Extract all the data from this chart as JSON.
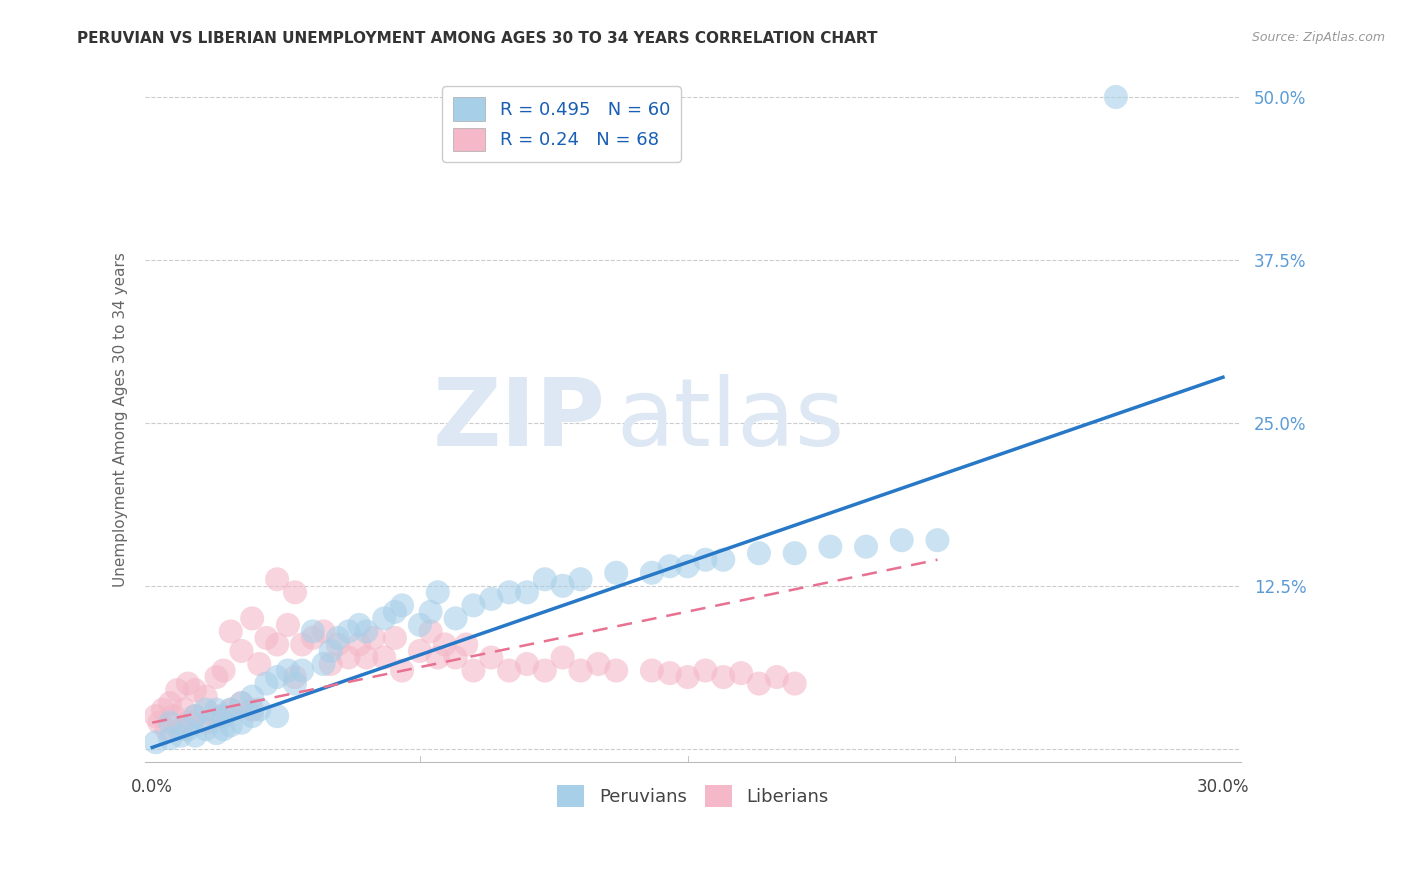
{
  "title": "PERUVIAN VS LIBERIAN UNEMPLOYMENT AMONG AGES 30 TO 34 YEARS CORRELATION CHART",
  "source": "Source: ZipAtlas.com",
  "ylabel": "Unemployment Among Ages 30 to 34 years",
  "yticks": [
    0.0,
    0.125,
    0.25,
    0.375,
    0.5
  ],
  "ytick_labels": [
    "",
    "12.5%",
    "25.0%",
    "37.5%",
    "50.0%"
  ],
  "xlim": [
    -0.002,
    0.305
  ],
  "ylim": [
    -0.01,
    0.515
  ],
  "peruvian_color": "#a8cfe8",
  "liberian_color": "#f4b8c8",
  "peruvian_line_color": "#2878c8",
  "liberian_line_color": "#e87090",
  "R_peruvian": 0.495,
  "N_peruvian": 60,
  "R_liberian": 0.24,
  "N_liberian": 68,
  "legend_label_peruvian": "Peruvians",
  "legend_label_liberian": "Liberians",
  "watermark_zip": "ZIP",
  "watermark_atlas": "atlas",
  "background_color": "#ffffff",
  "peruvian_scatter": {
    "x": [
      0.001,
      0.005,
      0.005,
      0.008,
      0.01,
      0.012,
      0.012,
      0.015,
      0.015,
      0.018,
      0.018,
      0.02,
      0.02,
      0.022,
      0.022,
      0.025,
      0.025,
      0.028,
      0.028,
      0.03,
      0.032,
      0.035,
      0.035,
      0.038,
      0.04,
      0.042,
      0.045,
      0.048,
      0.05,
      0.052,
      0.055,
      0.058,
      0.06,
      0.065,
      0.068,
      0.07,
      0.075,
      0.078,
      0.08,
      0.085,
      0.09,
      0.095,
      0.1,
      0.105,
      0.11,
      0.115,
      0.12,
      0.13,
      0.14,
      0.145,
      0.15,
      0.155,
      0.16,
      0.17,
      0.18,
      0.19,
      0.2,
      0.21,
      0.22,
      0.27
    ],
    "y": [
      0.005,
      0.008,
      0.02,
      0.01,
      0.015,
      0.01,
      0.025,
      0.015,
      0.03,
      0.012,
      0.03,
      0.015,
      0.025,
      0.018,
      0.03,
      0.02,
      0.035,
      0.025,
      0.04,
      0.03,
      0.05,
      0.025,
      0.055,
      0.06,
      0.05,
      0.06,
      0.09,
      0.065,
      0.075,
      0.085,
      0.09,
      0.095,
      0.09,
      0.1,
      0.105,
      0.11,
      0.095,
      0.105,
      0.12,
      0.1,
      0.11,
      0.115,
      0.12,
      0.12,
      0.13,
      0.125,
      0.13,
      0.135,
      0.135,
      0.14,
      0.14,
      0.145,
      0.145,
      0.15,
      0.15,
      0.155,
      0.155,
      0.16,
      0.16,
      0.5
    ]
  },
  "liberian_scatter": {
    "x": [
      0.001,
      0.002,
      0.003,
      0.004,
      0.005,
      0.006,
      0.007,
      0.008,
      0.009,
      0.01,
      0.01,
      0.012,
      0.012,
      0.015,
      0.015,
      0.018,
      0.018,
      0.02,
      0.02,
      0.022,
      0.022,
      0.025,
      0.025,
      0.028,
      0.028,
      0.03,
      0.032,
      0.035,
      0.035,
      0.038,
      0.04,
      0.04,
      0.042,
      0.045,
      0.048,
      0.05,
      0.052,
      0.055,
      0.058,
      0.06,
      0.062,
      0.065,
      0.068,
      0.07,
      0.075,
      0.078,
      0.08,
      0.082,
      0.085,
      0.088,
      0.09,
      0.095,
      0.1,
      0.105,
      0.11,
      0.115,
      0.12,
      0.125,
      0.13,
      0.14,
      0.145,
      0.15,
      0.155,
      0.16,
      0.165,
      0.17,
      0.175,
      0.18
    ],
    "y": [
      0.025,
      0.02,
      0.03,
      0.015,
      0.035,
      0.025,
      0.045,
      0.015,
      0.03,
      0.02,
      0.05,
      0.025,
      0.045,
      0.02,
      0.04,
      0.025,
      0.055,
      0.025,
      0.06,
      0.03,
      0.09,
      0.035,
      0.075,
      0.03,
      0.1,
      0.065,
      0.085,
      0.08,
      0.13,
      0.095,
      0.055,
      0.12,
      0.08,
      0.085,
      0.09,
      0.065,
      0.08,
      0.07,
      0.08,
      0.07,
      0.085,
      0.07,
      0.085,
      0.06,
      0.075,
      0.09,
      0.07,
      0.08,
      0.07,
      0.08,
      0.06,
      0.07,
      0.06,
      0.065,
      0.06,
      0.07,
      0.06,
      0.065,
      0.06,
      0.06,
      0.058,
      0.055,
      0.06,
      0.055,
      0.058,
      0.05,
      0.055,
      0.05
    ]
  }
}
